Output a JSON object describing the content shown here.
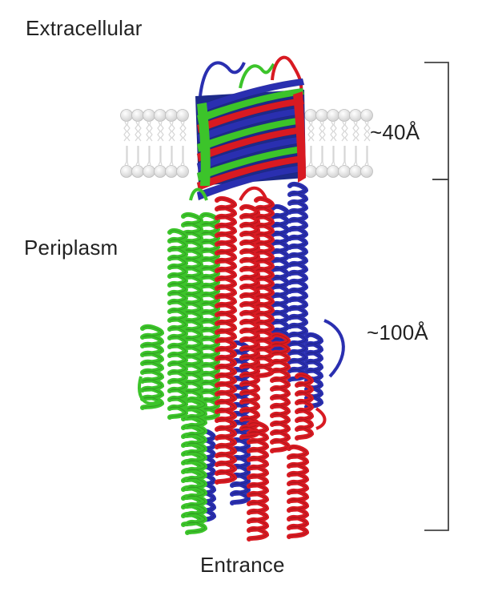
{
  "labels": {
    "extracellular": "Extracellular",
    "periplasm": "Periplasm",
    "entrance": "Entrance",
    "membrane_thickness": "~40Å",
    "periplasmic_length": "~100Å"
  },
  "chains": [
    {
      "name": "chain-green",
      "color": "#3cc42a"
    },
    {
      "name": "chain-red",
      "color": "#d81a22"
    },
    {
      "name": "chain-blue",
      "color": "#2a2fb0"
    }
  ],
  "membrane": {
    "headgroup_color": "#e4e4e4",
    "tail_color": "#d0d0d0"
  }
}
